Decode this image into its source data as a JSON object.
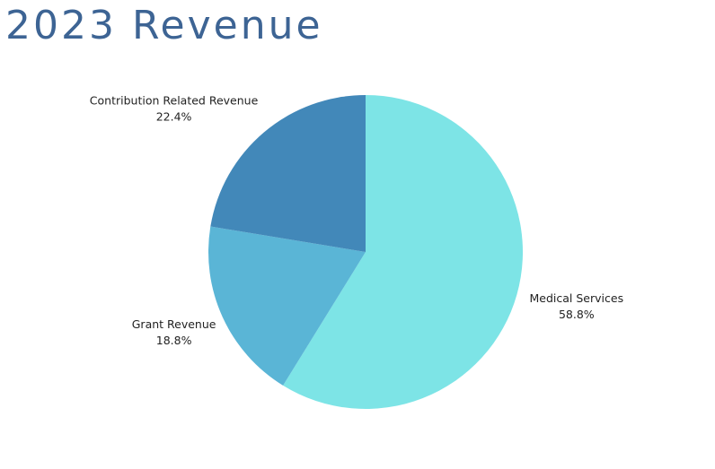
{
  "chart_data": {
    "type": "pie",
    "title": "2023 Revenue",
    "slices": [
      {
        "label": "Medical Services",
        "value": 58.8,
        "display": "58.8%",
        "color": "#7de4e6"
      },
      {
        "label": "Grant Revenue",
        "value": 18.8,
        "display": "18.8%",
        "color": "#5ab5d6"
      },
      {
        "label": "Contribution Related Revenue",
        "value": 22.4,
        "display": "22.4%",
        "color": "#4288b9"
      }
    ],
    "start_angle_deg": 0,
    "direction": "clockwise",
    "legend": "none",
    "labels": "outside"
  }
}
